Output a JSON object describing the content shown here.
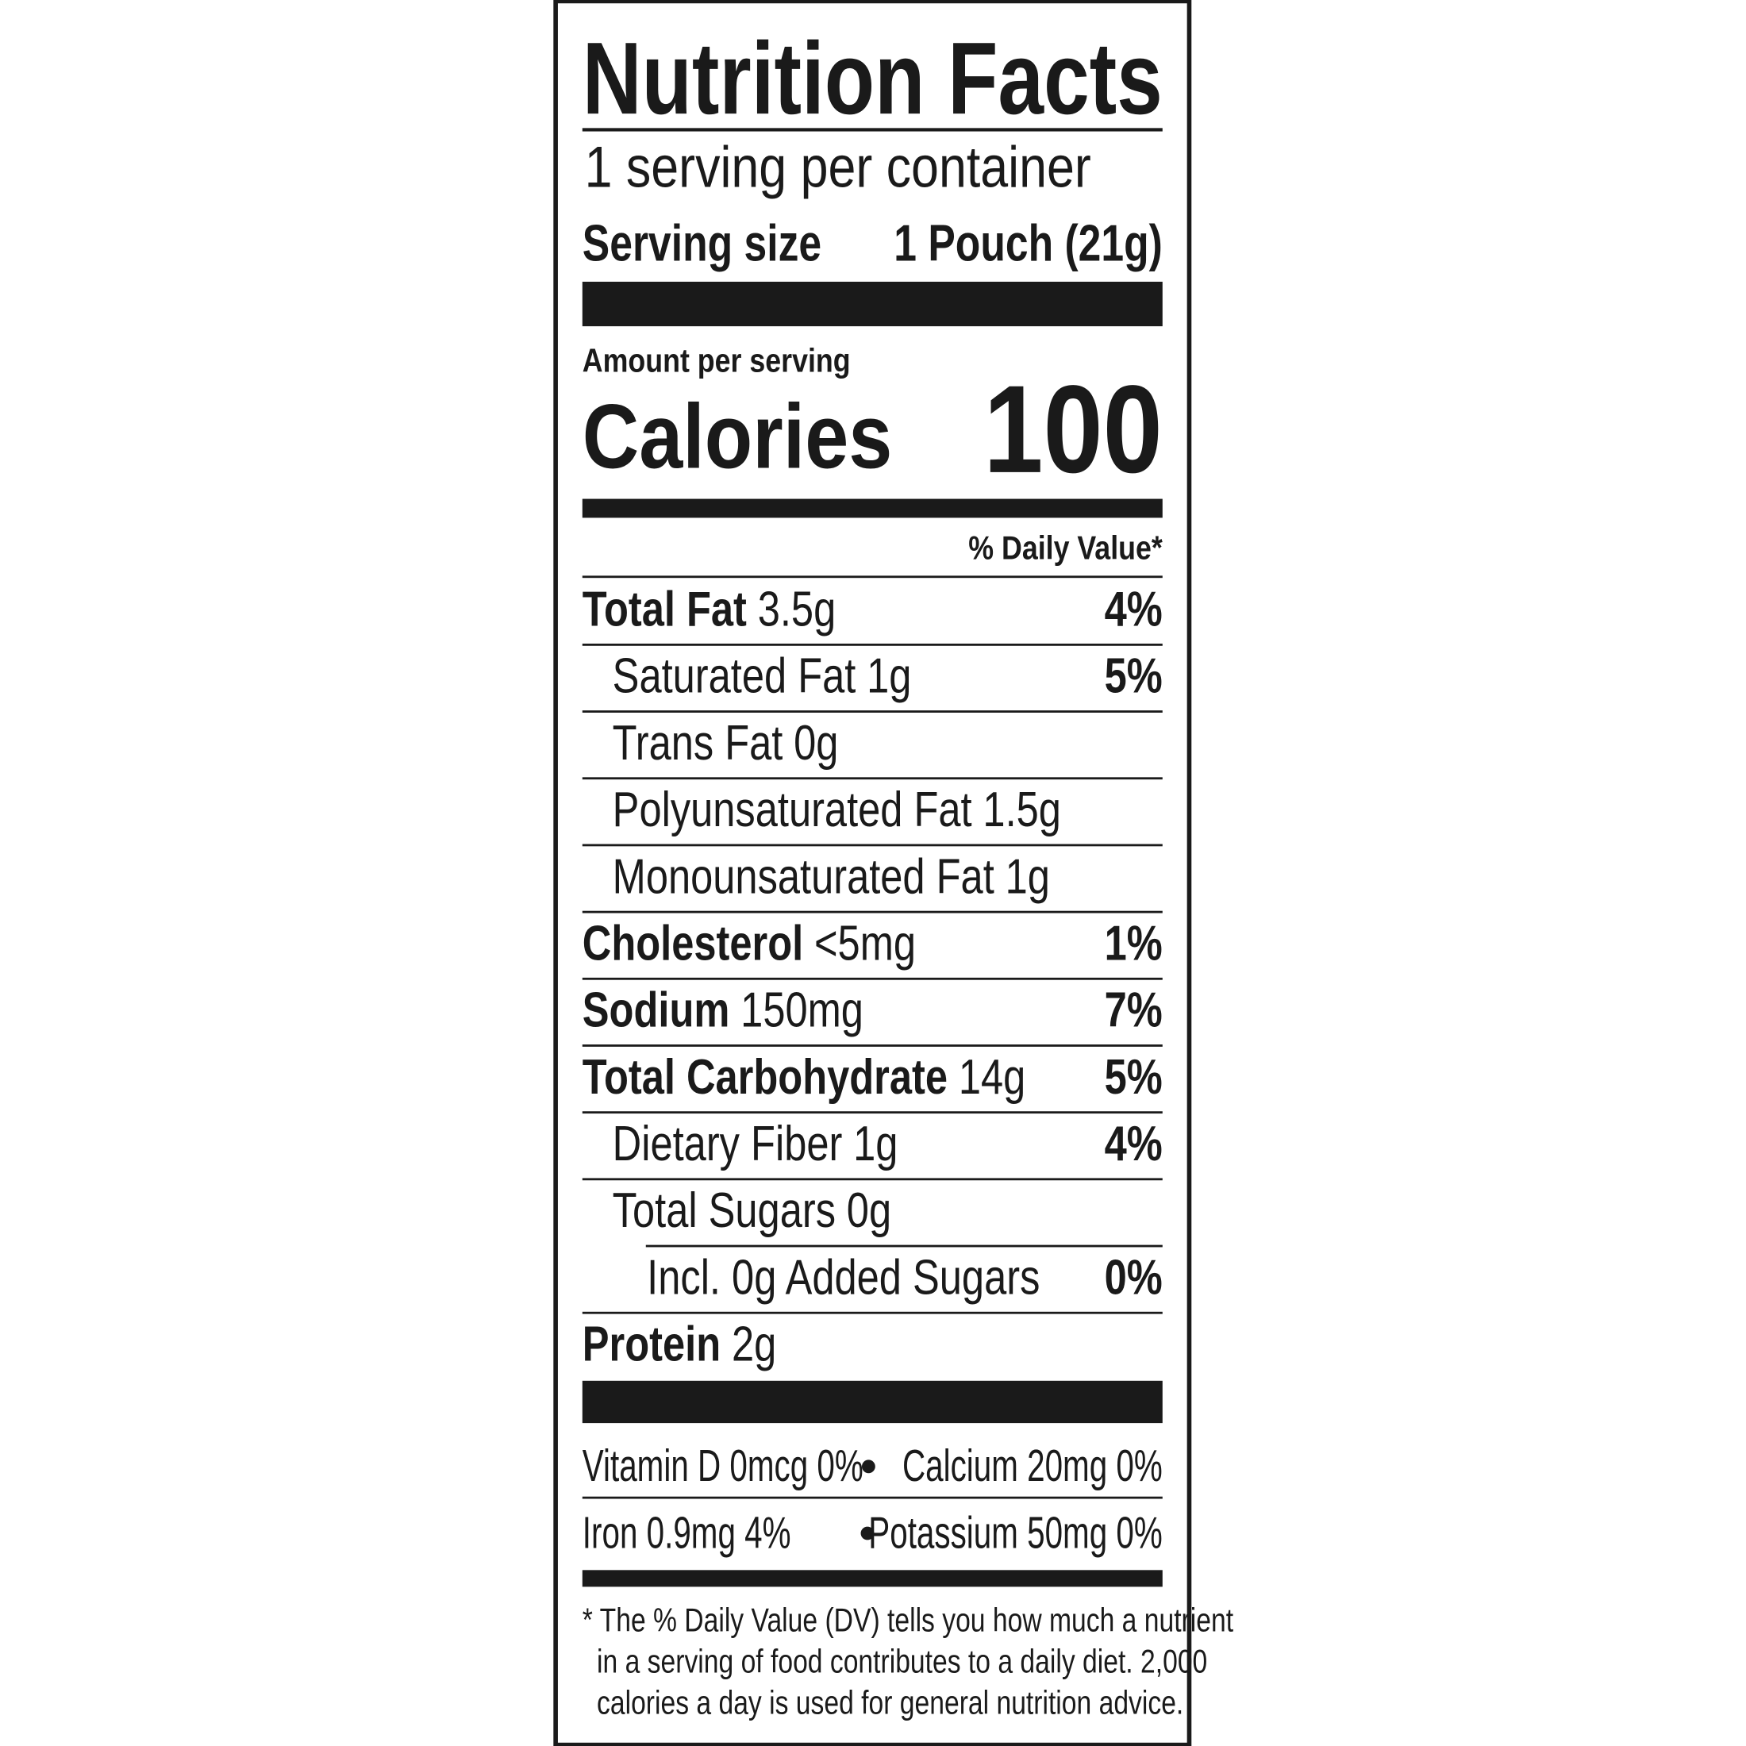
{
  "header": {
    "title": "Nutrition Facts",
    "servings": "1 serving per container",
    "serving_size_label": "Serving size",
    "serving_size_value": "1 Pouch (21g)"
  },
  "calories": {
    "amount_label": "Amount per serving",
    "label": "Calories",
    "value": "100"
  },
  "dv_header": "% Daily Value*",
  "rows": [
    {
      "name": "Total Fat",
      "amount": "3.5g",
      "dv": "4%"
    },
    {
      "name": "Saturated Fat",
      "amount": "1g",
      "dv": "5%"
    },
    {
      "name": "Trans Fat",
      "amount": "0g",
      "dv": ""
    },
    {
      "name": "Polyunsaturated Fat",
      "amount": "1.5g",
      "dv": ""
    },
    {
      "name": "Monounsaturated Fat",
      "amount": "1g",
      "dv": ""
    },
    {
      "name": "Cholesterol",
      "amount": "<5mg",
      "dv": "1%"
    },
    {
      "name": "Sodium",
      "amount": "150mg",
      "dv": "7%"
    },
    {
      "name": "Total Carbohydrate",
      "amount": "14g",
      "dv": "5%"
    },
    {
      "name": "Dietary Fiber",
      "amount": "1g",
      "dv": "4%"
    },
    {
      "name": "Total Sugars",
      "amount": "0g",
      "dv": ""
    },
    {
      "name": "Incl. 0g Added Sugars",
      "amount": "",
      "dv": "0%"
    },
    {
      "name": "Protein",
      "amount": "2g",
      "dv": ""
    }
  ],
  "vitamins": [
    [
      "Vitamin D 0mcg 0%",
      "Calcium 20mg 0%"
    ],
    [
      "Iron 0.9mg 4%",
      "Potassium 50mg 0%"
    ]
  ],
  "footnote": [
    "* The % Daily Value (DV) tells you how much a nutrient",
    "in a serving of food contributes to a daily diet. 2,000",
    "calories a day is used for general nutrition advice."
  ]
}
